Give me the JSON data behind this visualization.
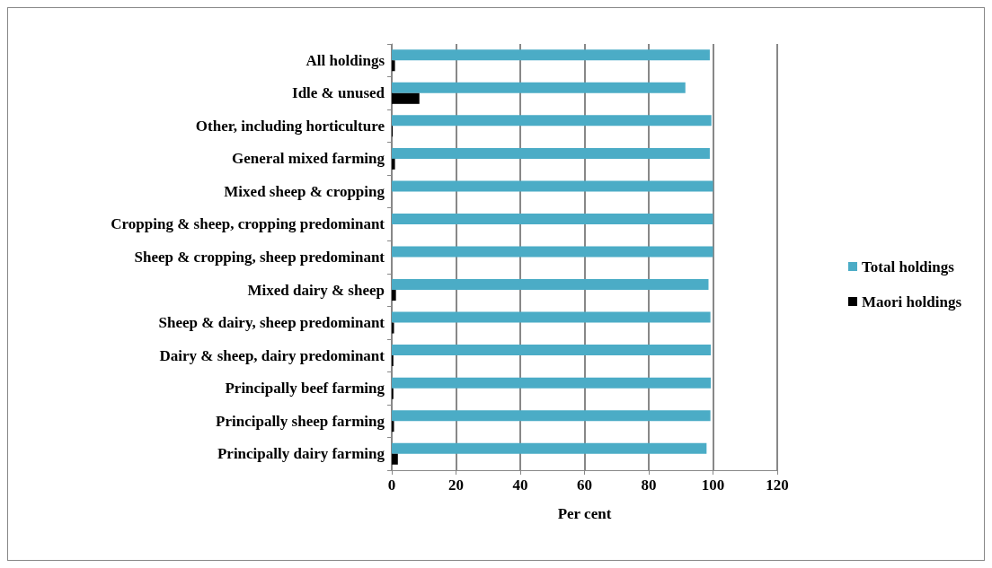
{
  "chart_data": {
    "type": "bar",
    "orientation": "horizontal",
    "xlabel": "Per cent",
    "categories": [
      "All holdings",
      "Idle & unused",
      "Other, including horticulture",
      "General mixed farming",
      "Mixed sheep & cropping",
      "Cropping & sheep, cropping predominant",
      "Sheep & cropping, sheep predominant",
      "Mixed dairy & sheep",
      "Sheep & dairy, sheep predominant",
      "Dairy & sheep, dairy predominant",
      "Principally beef farming",
      "Principally sheep farming",
      "Principally dairy farming"
    ],
    "series": [
      {
        "name": "Total holdings",
        "color": "#4bacc6",
        "values": [
          99,
          91.4,
          99.5,
          99,
          100,
          100,
          100,
          98.6,
          99.2,
          99.3,
          99.3,
          99.2,
          98
        ]
      },
      {
        "name": "Maori holdings",
        "color": "#000000",
        "values": [
          1,
          8.6,
          0.3,
          1,
          0,
          0,
          0,
          1.3,
          0.7,
          0.5,
          0.5,
          0.7,
          1.9
        ]
      }
    ],
    "xlim": [
      0,
      120
    ],
    "xticks": [
      0,
      20,
      40,
      60,
      80,
      100,
      120
    ],
    "grid": "x",
    "legend": "right"
  }
}
